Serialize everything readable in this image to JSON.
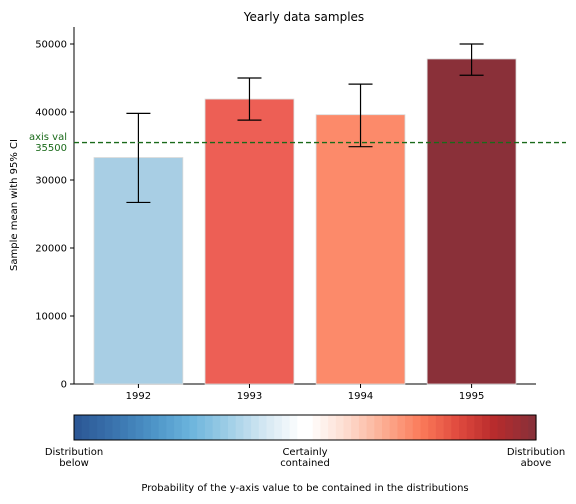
{
  "chart_data": {
    "type": "bar",
    "title": "Yearly data samples",
    "xlabel": "",
    "ylabel": "Sample mean with 95% CI",
    "ylim": [
      0,
      52500
    ],
    "yticks": [
      0,
      10000,
      20000,
      30000,
      40000,
      50000
    ],
    "categories": [
      "1992",
      "1993",
      "1994",
      "1995"
    ],
    "values": [
      33300,
      41900,
      39600,
      47800
    ],
    "ci_low": [
      26700,
      38800,
      34900,
      45400
    ],
    "ci_high": [
      39800,
      45000,
      44100,
      50000
    ],
    "bar_colors": [
      "#a8cee4",
      "#ed5f55",
      "#fc8a6a",
      "#8a3039"
    ],
    "reference_line": {
      "value": 35500,
      "label_line1": "axis val",
      "label_line2": "35500",
      "color": "#1a6a1a"
    },
    "colorbar": {
      "left_label_line1": "Distribution",
      "left_label_line2": "below",
      "center_label_line1": "Certainly",
      "center_label_line2": "contained",
      "right_label_line1": "Distribution",
      "right_label_line2": "above",
      "caption": "Probability of the y-axis value to be contained in the distributions",
      "colors_low": [
        "#2c5896",
        "#3a74ae",
        "#4c93c6",
        "#6ab3dc",
        "#9dcde6",
        "#d3e7f2",
        "#ffffff"
      ],
      "colors_high": [
        "#ffffff",
        "#fddccf",
        "#fcae93",
        "#fb7b5a",
        "#e04a3e",
        "#b72b2c",
        "#8a3039"
      ],
      "segments": 60
    }
  }
}
